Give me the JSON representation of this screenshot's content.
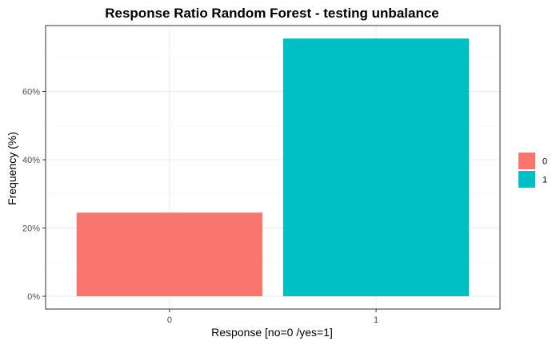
{
  "chart_data": {
    "type": "bar",
    "title": "Response Ratio Random Forest - testing unbalance",
    "xlabel": "Response [no=0 /yes=1]",
    "ylabel": "Frequency (%)",
    "categories": [
      "0",
      "1"
    ],
    "values": [
      24.5,
      75.5
    ],
    "colors": [
      "#f8766d",
      "#00bfc4"
    ],
    "ylim": [
      0,
      79.3
    ],
    "yticks": [
      0,
      20,
      40,
      60
    ],
    "ytick_labels": [
      "0%",
      "20%",
      "40%",
      "60%"
    ],
    "grid": true,
    "legend": {
      "position": "right",
      "entries": [
        {
          "label": "0",
          "color": "#f8766d"
        },
        {
          "label": "1",
          "color": "#00bfc4"
        }
      ]
    }
  }
}
